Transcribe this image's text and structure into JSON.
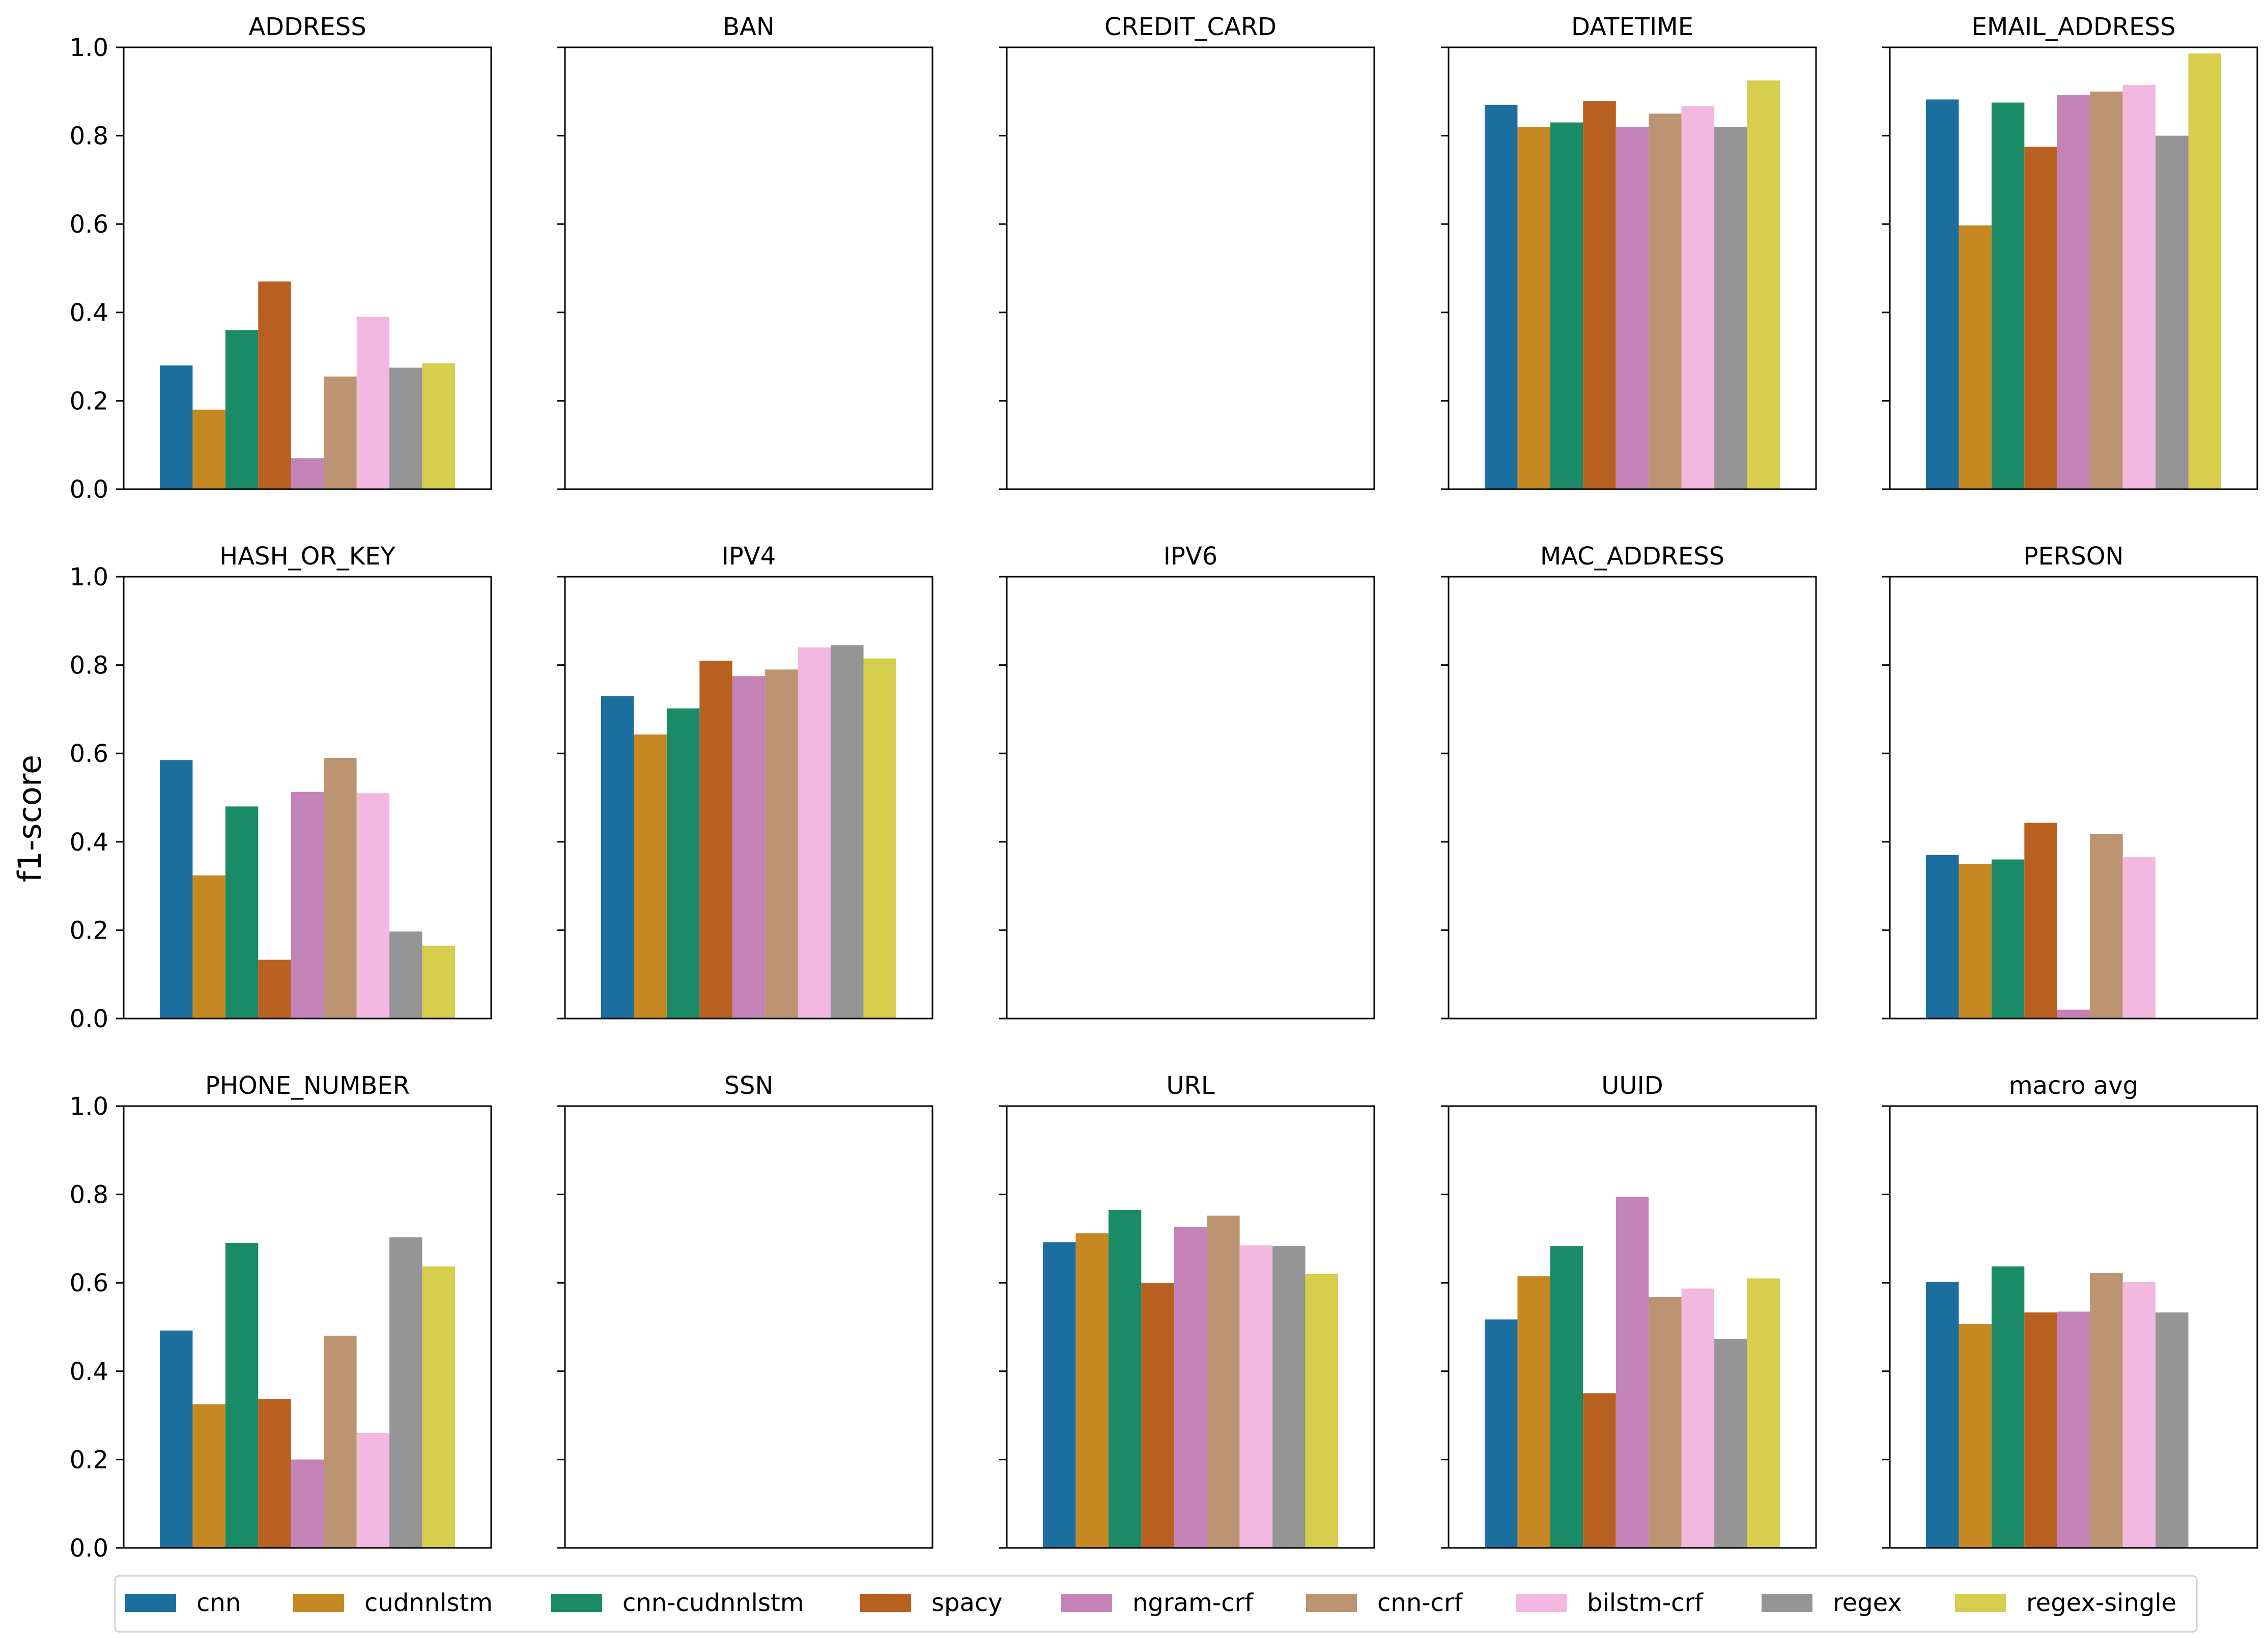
{
  "chart_data": {
    "type": "bar",
    "layout": "small-multiples 3x5, shared y-axis",
    "ylabel": "f1-score",
    "ylim": [
      0,
      1.0
    ],
    "yticks": [
      "0.0",
      "0.2",
      "0.4",
      "0.6",
      "0.8",
      "1.0"
    ],
    "legend_position": "bottom",
    "series": [
      {
        "name": "cnn",
        "color": "#1b6e9e"
      },
      {
        "name": "cudnnlstm",
        "color": "#c68823"
      },
      {
        "name": "cnn-cudnnlstm",
        "color": "#1a8a67"
      },
      {
        "name": "spacy",
        "color": "#b86020"
      },
      {
        "name": "ngram-crf",
        "color": "#c383b7"
      },
      {
        "name": "cnn-crf",
        "color": "#bd9471"
      },
      {
        "name": "bilstm-crf",
        "color": "#f2b8df"
      },
      {
        "name": "regex",
        "color": "#959595"
      },
      {
        "name": "regex-single",
        "color": "#d6ce4c"
      }
    ],
    "panels": [
      {
        "title": "ADDRESS",
        "values": [
          0.28,
          0.18,
          0.36,
          0.47,
          0.07,
          0.255,
          0.39,
          0.275,
          0.285
        ]
      },
      {
        "title": "BAN",
        "values": []
      },
      {
        "title": "CREDIT_CARD",
        "values": []
      },
      {
        "title": "DATETIME",
        "values": [
          0.87,
          0.82,
          0.83,
          0.878,
          0.82,
          0.85,
          0.867,
          0.82,
          0.925
        ]
      },
      {
        "title": "EMAIL_ADDRESS",
        "values": [
          0.882,
          0.597,
          0.875,
          0.775,
          0.892,
          0.9,
          0.915,
          0.8,
          0.986
        ]
      },
      {
        "title": "HASH_OR_KEY",
        "values": [
          0.585,
          0.324,
          0.48,
          0.133,
          0.513,
          0.59,
          0.51,
          0.197,
          0.165
        ]
      },
      {
        "title": "IPV4",
        "values": [
          0.73,
          0.643,
          0.702,
          0.81,
          0.775,
          0.79,
          0.84,
          0.845,
          0.815
        ]
      },
      {
        "title": "IPV6",
        "values": []
      },
      {
        "title": "MAC_ADDRESS",
        "values": []
      },
      {
        "title": "PERSON",
        "values": [
          0.37,
          0.35,
          0.36,
          0.443,
          0.02,
          0.418,
          0.365,
          null,
          null
        ]
      },
      {
        "title": "PHONE_NUMBER",
        "values": [
          0.492,
          0.325,
          0.69,
          0.337,
          0.2,
          0.48,
          0.26,
          0.703,
          0.637
        ]
      },
      {
        "title": "SSN",
        "values": []
      },
      {
        "title": "URL",
        "values": [
          0.692,
          0.712,
          0.765,
          0.6,
          0.727,
          0.752,
          0.685,
          0.683,
          0.62
        ]
      },
      {
        "title": "UUID",
        "values": [
          0.517,
          0.615,
          0.683,
          0.35,
          0.795,
          0.568,
          0.587,
          0.473,
          0.61
        ]
      },
      {
        "title": "macro avg",
        "values": [
          0.602,
          0.507,
          0.637,
          0.533,
          0.535,
          0.622,
          0.602,
          0.533,
          null
        ]
      }
    ]
  }
}
